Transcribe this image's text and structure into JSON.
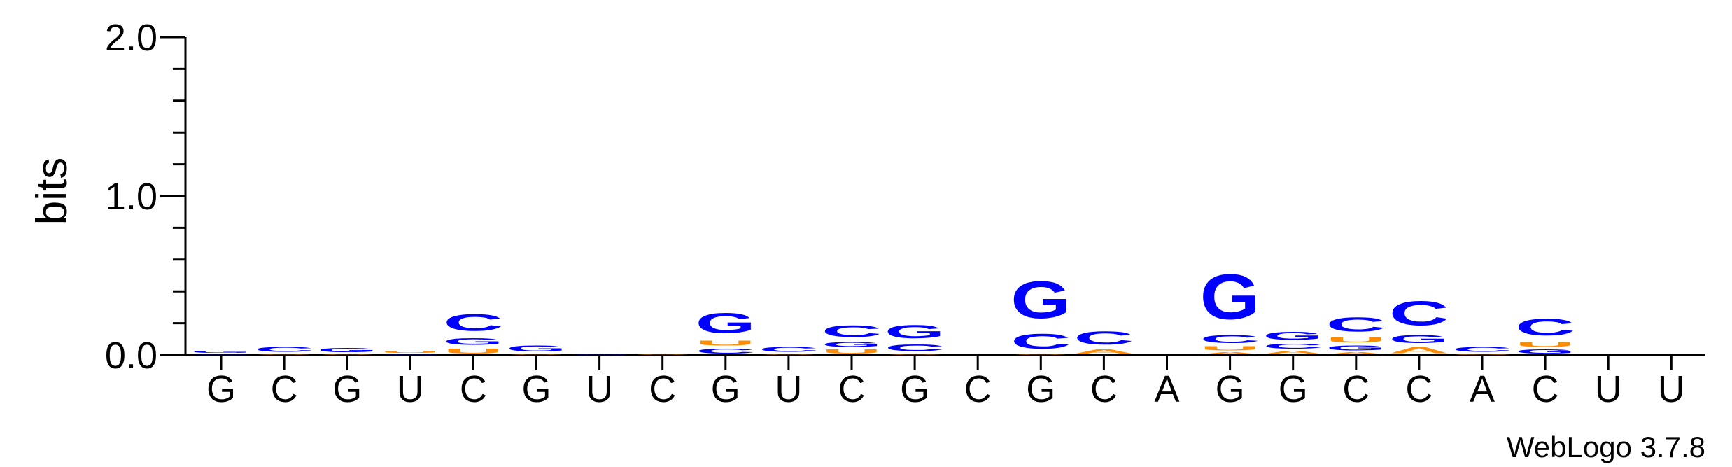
{
  "chart_data": {
    "type": "sequence-logo",
    "ylabel": "bits",
    "ylim": [
      0,
      2
    ],
    "yticks": [
      "0.0",
      "1.0",
      "2.0"
    ],
    "colors": {
      "A": "#ff8c00",
      "C": "#0000ff",
      "G": "#0000ff",
      "U": "#ff8c00"
    },
    "footer": "WebLogo 3.7.8",
    "positions": [
      {
        "label": "G",
        "stack": [
          [
            "C",
            0.01
          ],
          [
            "G",
            0.02
          ]
        ]
      },
      {
        "label": "C",
        "stack": [
          [
            "U",
            0.01
          ],
          [
            "C",
            0.05
          ]
        ]
      },
      {
        "label": "G",
        "stack": [
          [
            "U",
            0.01
          ],
          [
            "G",
            0.04
          ]
        ]
      },
      {
        "label": "U",
        "stack": [
          [
            "C",
            0.01
          ],
          [
            "U",
            0.02
          ]
        ]
      },
      {
        "label": "C",
        "stack": [
          [
            "U",
            0.05
          ],
          [
            "G",
            0.07
          ],
          [
            "C",
            0.17
          ]
        ]
      },
      {
        "label": "G",
        "stack": [
          [
            "U",
            0.01
          ],
          [
            "G",
            0.06
          ]
        ]
      },
      {
        "label": "U",
        "stack": [
          [
            "C",
            0.01
          ]
        ]
      },
      {
        "label": "C",
        "stack": [
          [
            "U",
            0.01
          ]
        ]
      },
      {
        "label": "G",
        "stack": [
          [
            "C",
            0.05
          ],
          [
            "U",
            0.05
          ],
          [
            "G",
            0.2
          ]
        ]
      },
      {
        "label": "U",
        "stack": [
          [
            "U",
            0.01
          ],
          [
            "C",
            0.05
          ]
        ]
      },
      {
        "label": "C",
        "stack": [
          [
            "U",
            0.04
          ],
          [
            "G",
            0.05
          ],
          [
            "C",
            0.12
          ]
        ]
      },
      {
        "label": "G",
        "stack": [
          [
            "U",
            0.01
          ],
          [
            "C",
            0.07
          ],
          [
            "G",
            0.13
          ]
        ]
      },
      {
        "label": "C",
        "stack": []
      },
      {
        "label": "G",
        "stack": [
          [
            "U",
            0.01
          ],
          [
            "C",
            0.15
          ],
          [
            "G",
            0.37
          ]
        ]
      },
      {
        "label": "C",
        "stack": [
          [
            "A",
            0.04
          ],
          [
            "C",
            0.13
          ]
        ]
      },
      {
        "label": "A",
        "stack": []
      },
      {
        "label": "G",
        "stack": [
          [
            "A",
            0.02
          ],
          [
            "U",
            0.04
          ],
          [
            "C",
            0.08
          ],
          [
            "G",
            0.45
          ]
        ]
      },
      {
        "label": "G",
        "stack": [
          [
            "A",
            0.03
          ],
          [
            "C",
            0.05
          ],
          [
            "G",
            0.08
          ]
        ]
      },
      {
        "label": "C",
        "stack": [
          [
            "A",
            0.02
          ],
          [
            "G",
            0.05
          ],
          [
            "U",
            0.05
          ],
          [
            "C",
            0.14
          ]
        ]
      },
      {
        "label": "C",
        "stack": [
          [
            "A",
            0.06
          ],
          [
            "G",
            0.08
          ],
          [
            "C",
            0.24
          ]
        ]
      },
      {
        "label": "A",
        "stack": [
          [
            "A",
            0.01
          ],
          [
            "C",
            0.05
          ]
        ]
      },
      {
        "label": "C",
        "stack": [
          [
            "G",
            0.04
          ],
          [
            "U",
            0.05
          ],
          [
            "C",
            0.17
          ]
        ]
      },
      {
        "label": "U",
        "stack": []
      },
      {
        "label": "U",
        "stack": []
      }
    ]
  }
}
